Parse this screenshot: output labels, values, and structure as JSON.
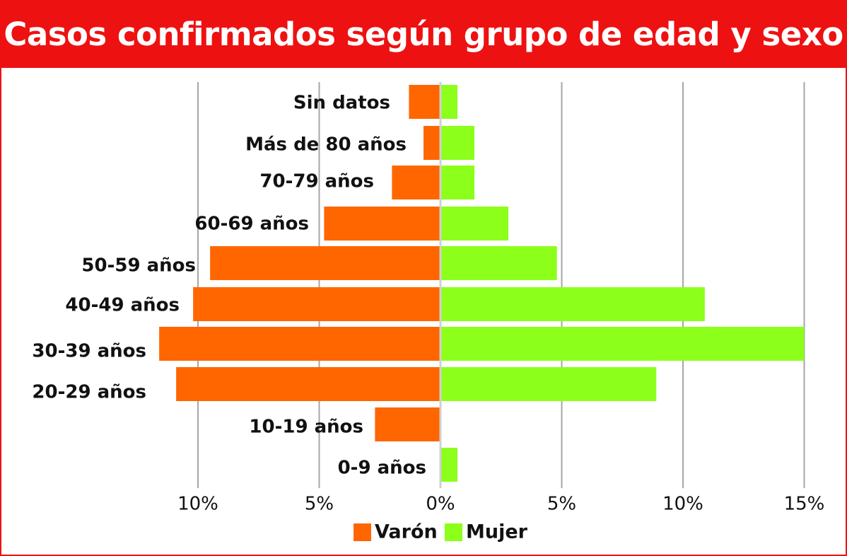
{
  "title": "Casos confirmados según grupo de edad y sexo",
  "colors": {
    "frame": "#ee1111",
    "title_text": "#ffffff",
    "male": "#ff6600",
    "female": "#8cff1a",
    "grid": "#a6a6a6",
    "center_line": "#d0d0d0"
  },
  "chart_data": {
    "type": "bar",
    "orientation": "horizontal",
    "layout": "population-pyramid",
    "title": "Casos confirmados según grupo de edad y sexo",
    "categories": [
      "Sin datos",
      "Más de 80 años",
      "70-79 años",
      "60-69 años",
      "50-59 años",
      "40-49 años",
      "30-39 años",
      "20-29 años",
      "10-19 años",
      "0-9 años"
    ],
    "series": [
      {
        "name": "Varón",
        "side": "left",
        "color": "#ff6600",
        "values": [
          1.3,
          0.7,
          2.0,
          4.8,
          9.5,
          10.2,
          11.6,
          10.9,
          2.7,
          0.0
        ]
      },
      {
        "name": "Mujer",
        "side": "right",
        "color": "#8cff1a",
        "values": [
          0.7,
          1.4,
          1.4,
          2.8,
          4.8,
          10.9,
          15.0,
          8.9,
          0.0,
          0.7
        ]
      }
    ],
    "xlim": [
      -10,
      15
    ],
    "xticks": [
      {
        "value": -10,
        "label": "10%"
      },
      {
        "value": -5,
        "label": "5%"
      },
      {
        "value": 0,
        "label": "0%"
      },
      {
        "value": 5,
        "label": "5%"
      },
      {
        "value": 10,
        "label": "10%"
      },
      {
        "value": 15,
        "label": "15%"
      }
    ],
    "xlabel": "",
    "ylabel": "",
    "grid": true,
    "legend": {
      "placement": "bottom-center",
      "entries": [
        "Varón",
        "Mujer"
      ]
    }
  }
}
